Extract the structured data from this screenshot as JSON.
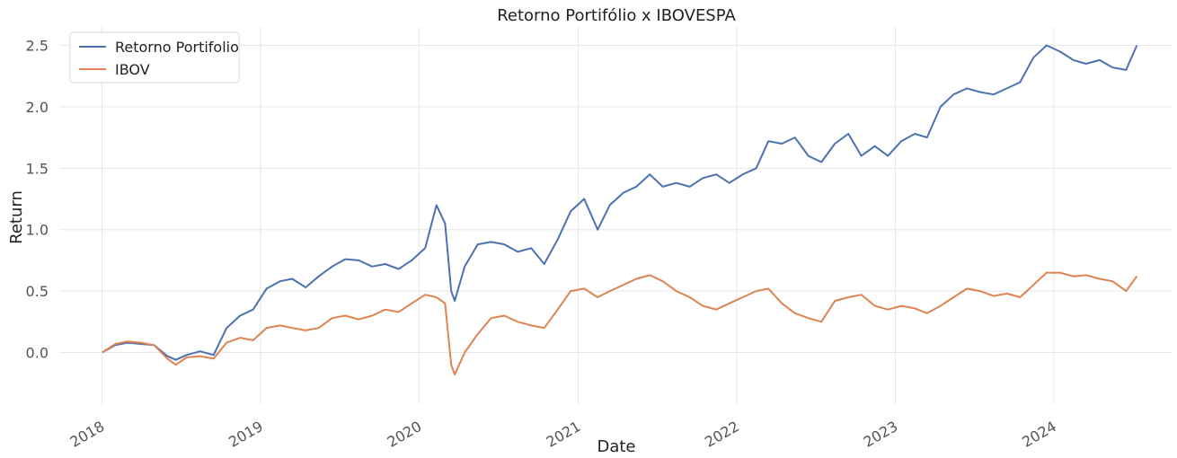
{
  "chart_data": {
    "type": "line",
    "title": "Retorno Portifólio x IBOVESPA",
    "xlabel": "Date",
    "ylabel": "Return",
    "xlim": [
      "2017-09-25",
      "2024-09-30"
    ],
    "ylim": [
      -0.42,
      2.65
    ],
    "grid": true,
    "legend_position": "top-left",
    "x_ticks": [
      "2018",
      "2019",
      "2020",
      "2021",
      "2022",
      "2023",
      "2024"
    ],
    "y_ticks": [
      "0.0",
      "0.5",
      "1.0",
      "1.5",
      "2.0",
      "2.5"
    ],
    "y_tick_values": [
      0.0,
      0.5,
      1.0,
      1.5,
      2.0,
      2.5
    ],
    "series": [
      {
        "name": "Retorno Portifolio",
        "color": "#4c72b0",
        "x": [
          "2018-01-02",
          "2018-02-01",
          "2018-03-01",
          "2018-04-01",
          "2018-05-01",
          "2018-06-01",
          "2018-06-20",
          "2018-07-15",
          "2018-08-15",
          "2018-09-15",
          "2018-10-15",
          "2018-11-15",
          "2018-12-15",
          "2019-01-15",
          "2019-02-15",
          "2019-03-15",
          "2019-04-15",
          "2019-05-15",
          "2019-06-15",
          "2019-07-15",
          "2019-08-15",
          "2019-09-15",
          "2019-10-15",
          "2019-11-15",
          "2019-12-15",
          "2020-01-15",
          "2020-02-10",
          "2020-03-01",
          "2020-03-15",
          "2020-03-23",
          "2020-04-15",
          "2020-05-15",
          "2020-06-15",
          "2020-07-15",
          "2020-08-15",
          "2020-09-15",
          "2020-10-15",
          "2020-11-15",
          "2020-12-15",
          "2021-01-15",
          "2021-02-15",
          "2021-03-15",
          "2021-04-15",
          "2021-05-15",
          "2021-06-15",
          "2021-07-15",
          "2021-08-15",
          "2021-09-15",
          "2021-10-15",
          "2021-11-15",
          "2021-12-15",
          "2022-01-15",
          "2022-02-15",
          "2022-03-15",
          "2022-04-15",
          "2022-05-15",
          "2022-06-15",
          "2022-07-15",
          "2022-08-15",
          "2022-09-15",
          "2022-10-15",
          "2022-11-15",
          "2022-12-15",
          "2023-01-15",
          "2023-02-15",
          "2023-03-15",
          "2023-04-15",
          "2023-05-15",
          "2023-06-15",
          "2023-07-15",
          "2023-08-15",
          "2023-09-15",
          "2023-10-15",
          "2023-11-15",
          "2023-12-15",
          "2024-01-15",
          "2024-02-15",
          "2024-03-15",
          "2024-04-15",
          "2024-05-15",
          "2024-06-15",
          "2024-07-10"
        ],
        "y": [
          0.0,
          0.06,
          0.08,
          0.07,
          0.06,
          -0.03,
          -0.06,
          -0.02,
          0.01,
          -0.02,
          0.2,
          0.3,
          0.35,
          0.52,
          0.58,
          0.6,
          0.53,
          0.62,
          0.7,
          0.76,
          0.75,
          0.7,
          0.72,
          0.68,
          0.75,
          0.85,
          1.2,
          1.05,
          0.5,
          0.42,
          0.7,
          0.88,
          0.9,
          0.88,
          0.82,
          0.85,
          0.72,
          0.92,
          1.15,
          1.25,
          1.0,
          1.2,
          1.3,
          1.35,
          1.45,
          1.35,
          1.38,
          1.35,
          1.42,
          1.45,
          1.38,
          1.45,
          1.5,
          1.72,
          1.7,
          1.75,
          1.6,
          1.55,
          1.7,
          1.78,
          1.6,
          1.68,
          1.6,
          1.72,
          1.78,
          1.75,
          2.0,
          2.1,
          2.15,
          2.12,
          2.1,
          2.15,
          2.2,
          2.4,
          2.5,
          2.45,
          2.38,
          2.35,
          2.38,
          2.32,
          2.3,
          2.5
        ]
      },
      {
        "name": "IBOV",
        "color": "#dd8452",
        "x": [
          "2018-01-02",
          "2018-02-01",
          "2018-03-01",
          "2018-04-01",
          "2018-05-01",
          "2018-06-01",
          "2018-06-20",
          "2018-07-15",
          "2018-08-15",
          "2018-09-15",
          "2018-10-15",
          "2018-11-15",
          "2018-12-15",
          "2019-01-15",
          "2019-02-15",
          "2019-03-15",
          "2019-04-15",
          "2019-05-15",
          "2019-06-15",
          "2019-07-15",
          "2019-08-15",
          "2019-09-15",
          "2019-10-15",
          "2019-11-15",
          "2019-12-15",
          "2020-01-15",
          "2020-02-10",
          "2020-03-01",
          "2020-03-15",
          "2020-03-23",
          "2020-04-15",
          "2020-05-15",
          "2020-06-15",
          "2020-07-15",
          "2020-08-15",
          "2020-09-15",
          "2020-10-15",
          "2020-11-15",
          "2020-12-15",
          "2021-01-15",
          "2021-02-15",
          "2021-03-15",
          "2021-04-15",
          "2021-05-15",
          "2021-06-15",
          "2021-07-15",
          "2021-08-15",
          "2021-09-15",
          "2021-10-15",
          "2021-11-15",
          "2021-12-15",
          "2022-01-15",
          "2022-02-15",
          "2022-03-15",
          "2022-04-15",
          "2022-05-15",
          "2022-06-15",
          "2022-07-15",
          "2022-08-15",
          "2022-09-15",
          "2022-10-15",
          "2022-11-15",
          "2022-12-15",
          "2023-01-15",
          "2023-02-15",
          "2023-03-15",
          "2023-04-15",
          "2023-05-15",
          "2023-06-15",
          "2023-07-15",
          "2023-08-15",
          "2023-09-15",
          "2023-10-15",
          "2023-11-15",
          "2023-12-15",
          "2024-01-15",
          "2024-02-15",
          "2024-03-15",
          "2024-04-15",
          "2024-05-15",
          "2024-06-15",
          "2024-07-10"
        ],
        "y": [
          0.0,
          0.07,
          0.09,
          0.08,
          0.06,
          -0.05,
          -0.1,
          -0.04,
          -0.03,
          -0.05,
          0.08,
          0.12,
          0.1,
          0.2,
          0.22,
          0.2,
          0.18,
          0.2,
          0.28,
          0.3,
          0.27,
          0.3,
          0.35,
          0.33,
          0.4,
          0.47,
          0.45,
          0.4,
          -0.1,
          -0.18,
          0.0,
          0.15,
          0.28,
          0.3,
          0.25,
          0.22,
          0.2,
          0.35,
          0.5,
          0.52,
          0.45,
          0.5,
          0.55,
          0.6,
          0.63,
          0.58,
          0.5,
          0.45,
          0.38,
          0.35,
          0.4,
          0.45,
          0.5,
          0.52,
          0.4,
          0.32,
          0.28,
          0.25,
          0.42,
          0.45,
          0.47,
          0.38,
          0.35,
          0.38,
          0.36,
          0.32,
          0.38,
          0.45,
          0.52,
          0.5,
          0.46,
          0.48,
          0.45,
          0.55,
          0.65,
          0.65,
          0.62,
          0.63,
          0.6,
          0.58,
          0.5,
          0.62
        ]
      }
    ]
  }
}
